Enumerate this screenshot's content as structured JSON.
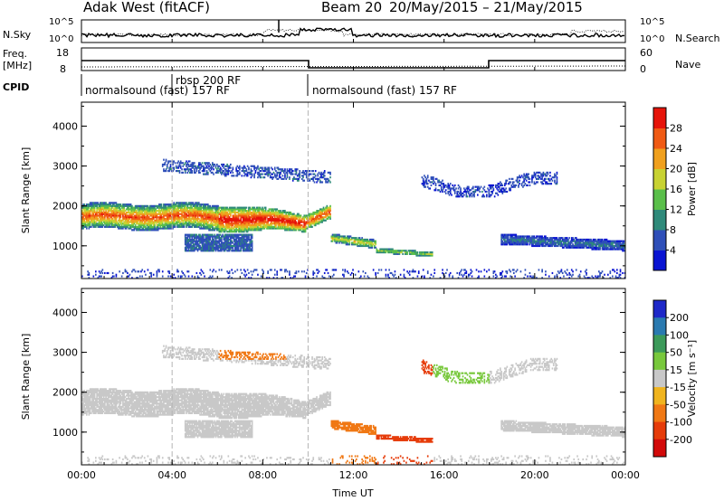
{
  "header": {
    "radar": "Adak West (fitACF)",
    "beam": "Beam 20",
    "dates": "20/May/2015 – 21/May/2015"
  },
  "labels": {
    "nsky": "N.Sky",
    "nsearch": "N.Search",
    "freq": "Freq.",
    "mhz": "[MHz]",
    "nave": "Nave",
    "cpid": "CPID",
    "nsky_top": "10^5",
    "nsky_bot": "10^0",
    "freq_top": "18",
    "freq_bot": "8",
    "nave_top": "60",
    "nave_bot": "0"
  },
  "cpid": {
    "segments": [
      {
        "label": "normalsound (fast) 157 RF",
        "start_hour": 0,
        "end_hour": 10
      },
      {
        "label": "rbsp 200 RF",
        "start_hour": 4,
        "end_hour": 5
      },
      {
        "label": "normalsound (fast) 157 RF",
        "start_hour": 10,
        "end_hour": 24
      }
    ]
  },
  "chart_data": [
    {
      "type": "heatmap",
      "title": "",
      "ylabel": "Slant Range [km]",
      "xlabel": "Time UT",
      "x_ticks": [
        "00:00",
        "04:00",
        "08:00",
        "12:00",
        "16:00",
        "20:00",
        "00:00"
      ],
      "xlim_hours": [
        0,
        24
      ],
      "y_ticks": [
        1000,
        2000,
        3000,
        4000
      ],
      "ylim": [
        180,
        4600
      ],
      "colorbar": {
        "label": "Power [dB]",
        "ticks": [
          4,
          8,
          12,
          16,
          20,
          24,
          28
        ],
        "range": [
          0,
          32
        ],
        "colors": [
          "#0a14d2",
          "#2f4fb8",
          "#2f8a7a",
          "#5abf4a",
          "#c8d232",
          "#f0a01e",
          "#f05a14",
          "#e6140a"
        ]
      }
    },
    {
      "type": "heatmap",
      "ylabel": "Slant Range [km]",
      "xlabel": "Time UT",
      "x_ticks": [
        "00:00",
        "04:00",
        "08:00",
        "12:00",
        "16:00",
        "20:00",
        "00:00"
      ],
      "xlim_hours": [
        0,
        24
      ],
      "y_ticks": [
        1000,
        2000,
        3000,
        4000
      ],
      "ylim": [
        180,
        4600
      ],
      "colorbar": {
        "label": "Velocity [m s⁻¹]",
        "ticks": [
          200,
          100,
          50,
          15,
          -15,
          -50,
          -100,
          -200
        ],
        "colors": [
          "#1e28c8",
          "#2a7ab0",
          "#3c9a5a",
          "#78c83c",
          "#c8c8c8",
          "#f0b41e",
          "#f07814",
          "#e63c0a",
          "#d20a0a"
        ]
      }
    }
  ],
  "time_axis_label": "Time UT"
}
